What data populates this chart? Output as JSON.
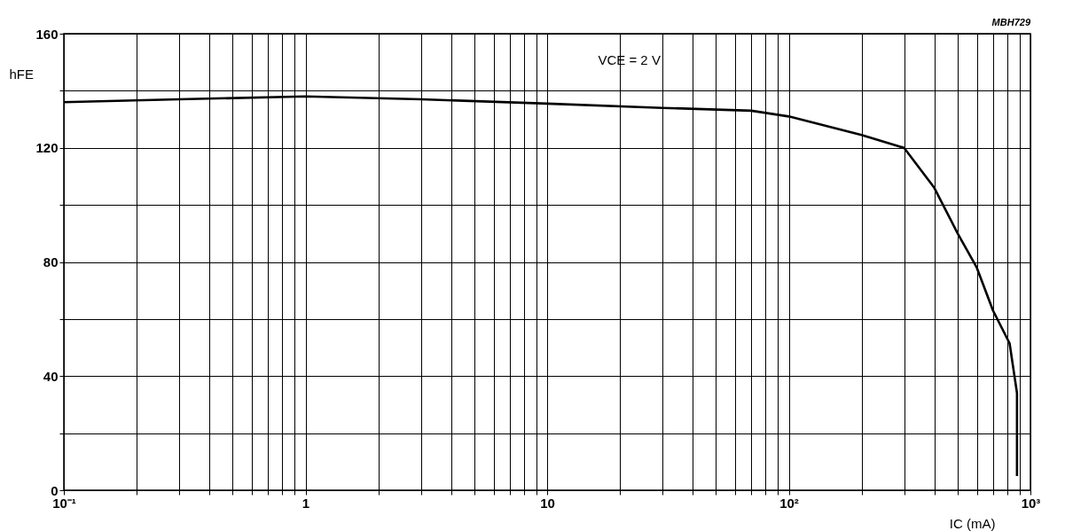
{
  "chart_data": {
    "type": "line",
    "xlabel": "IC (mA)",
    "ylabel": "hFE",
    "annotations": [
      "VCE = 2 V",
      "MBH729"
    ],
    "series": [
      {
        "color": "#000000",
        "x": [
          0.1,
          0.3,
          1,
          3,
          10,
          30,
          70,
          100,
          200,
          300,
          400,
          500,
          600,
          700,
          820,
          880,
          880
        ],
        "values": [
          136,
          137,
          138,
          137,
          135.5,
          134,
          133,
          131,
          124.5,
          120,
          106,
          90,
          78,
          63,
          51.5,
          34,
          5
        ]
      }
    ],
    "log": "x",
    "xlim": [
      0.1,
      1000
    ],
    "ylim": [
      0,
      160
    ],
    "xticks": [
      {
        "value": 0.1,
        "label": "10⁻¹"
      },
      {
        "value": 0.2,
        "label": null
      },
      {
        "value": 0.3,
        "label": null
      },
      {
        "value": 0.4,
        "label": null
      },
      {
        "value": 0.5,
        "label": null
      },
      {
        "value": 0.6,
        "label": null
      },
      {
        "value": 0.7,
        "label": null
      },
      {
        "value": 0.8,
        "label": null
      },
      {
        "value": 0.9,
        "label": null
      },
      1,
      {
        "value": 2,
        "label": null
      },
      {
        "value": 3,
        "label": null
      },
      {
        "value": 4,
        "label": null
      },
      {
        "value": 5,
        "label": null
      },
      {
        "value": 6,
        "label": null
      },
      {
        "value": 7,
        "label": null
      },
      {
        "value": 8,
        "label": null
      },
      {
        "value": 9,
        "label": null
      },
      10,
      {
        "value": 20,
        "label": null
      },
      {
        "value": 30,
        "label": null
      },
      {
        "value": 40,
        "label": null
      },
      {
        "value": 50,
        "label": null
      },
      {
        "value": 60,
        "label": null
      },
      {
        "value": 70,
        "label": null
      },
      {
        "value": 80,
        "label": null
      },
      {
        "value": 90,
        "label": null
      },
      {
        "value": 100,
        "label": "10²"
      },
      {
        "value": 200,
        "label": null
      },
      {
        "value": 300,
        "label": null
      },
      {
        "value": 400,
        "label": null
      },
      {
        "value": 500,
        "label": null
      },
      {
        "value": 600,
        "label": null
      },
      {
        "value": 700,
        "label": null
      },
      {
        "value": 800,
        "label": null
      },
      {
        "value": 900,
        "label": null
      },
      {
        "value": 1000,
        "label": "10³"
      }
    ],
    "yticks": [
      0,
      {
        "value": 20,
        "label": null
      },
      40,
      {
        "value": 60,
        "label": null
      },
      80,
      {
        "value": 100,
        "label": null
      },
      120,
      {
        "value": 140,
        "label": null
      },
      160
    ],
    "grid": true,
    "marker": "none",
    "line_style": "solid"
  }
}
